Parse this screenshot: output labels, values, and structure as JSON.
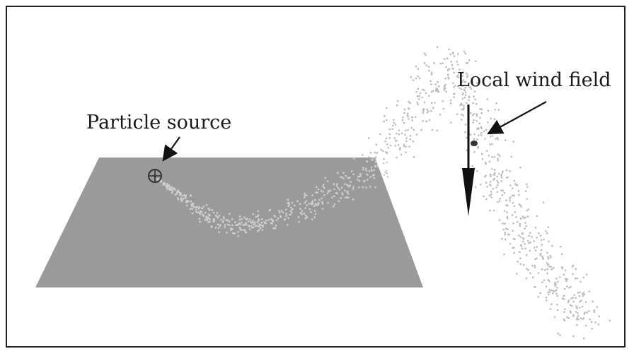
{
  "labels": {
    "particle_source": "Particle source",
    "local_wind_field": "Local wind field"
  },
  "colors": {
    "border": "#222222",
    "plane": "#9a9a9a",
    "particles_on_plane": "#c9c9c9",
    "particles_in_air": "#bdbdbd",
    "arrow": "#111111",
    "text": "#1a1a1a"
  },
  "icons": {
    "source_marker": "crosshair-circle-icon",
    "wind_vector": "down-arrow-icon"
  }
}
